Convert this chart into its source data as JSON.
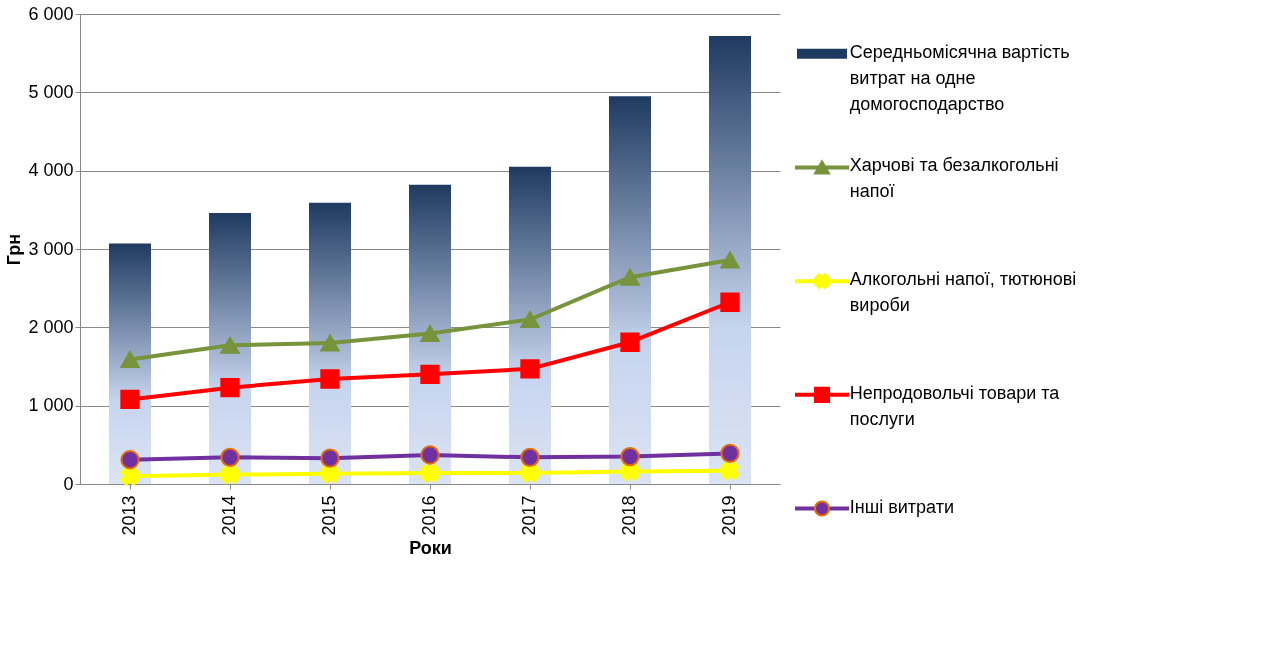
{
  "chart_data": {
    "type": "bar",
    "xlabel": "Роки",
    "ylabel": "Грн",
    "categories": [
      "2013",
      "2014",
      "2015",
      "2016",
      "2017",
      "2018",
      "2019"
    ],
    "series": [
      {
        "name": "Середньомісячна  вартість витрат на одне домогосподарство",
        "color": "#1f3a60",
        "values": [
          3070,
          3460,
          3590,
          3820,
          4050,
          4950,
          5720
        ]
      },
      {
        "name": "Харчові та безалкогольні напої",
        "type": "line",
        "color": "#77933c",
        "marker": "triangle",
        "values": [
          1590,
          1770,
          1800,
          1920,
          2100,
          2640,
          2860
        ]
      },
      {
        "name": "Алкогольні напої, тютюнові вироби",
        "type": "line",
        "color": "#ffff00",
        "marker": "cross",
        "values": [
          100,
          120,
          130,
          140,
          140,
          160,
          170
        ]
      },
      {
        "name": "Непродовольчі товари та послуги",
        "type": "line",
        "color": "#ff0000",
        "marker": "square",
        "values": [
          1080,
          1230,
          1340,
          1400,
          1470,
          1810,
          2320
        ]
      },
      {
        "name": "Інші витрати",
        "type": "line",
        "color": "#7030a0",
        "marker": "circle",
        "values": [
          310,
          340,
          330,
          370,
          340,
          350,
          390
        ]
      }
    ],
    "ylim": [
      0,
      6000
    ],
    "yticks": [
      {
        "value": 0,
        "label": "0"
      },
      {
        "value": 1000,
        "label": "1 000"
      },
      {
        "value": 2000,
        "label": "2 000"
      },
      {
        "value": 3000,
        "label": "3 000"
      },
      {
        "value": 4000,
        "label": "4 000"
      },
      {
        "value": 5000,
        "label": "5 000"
      },
      {
        "value": 6000,
        "label": "6 000"
      }
    ],
    "grid": "y",
    "legend": "right",
    "line_style": "solid"
  }
}
